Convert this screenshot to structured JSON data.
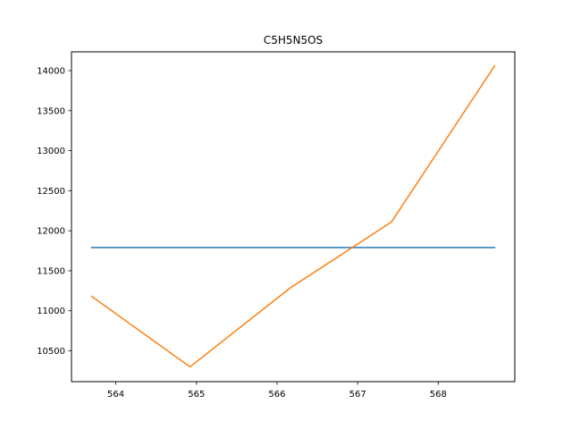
{
  "chart_data": {
    "type": "line",
    "title": "C5H5N5OS",
    "xlabel": "",
    "ylabel": "",
    "xlim": [
      563.45,
      568.95
    ],
    "ylim": [
      10115,
      14235
    ],
    "x_ticks": [
      564,
      565,
      566,
      567,
      568
    ],
    "y_ticks": [
      10500,
      11000,
      11500,
      12000,
      12500,
      13000,
      13500,
      14000
    ],
    "grid": false,
    "series": [
      {
        "color": "#1f77b4",
        "x": [
          563.7,
          568.7
        ],
        "y": [
          11790,
          11790
        ]
      },
      {
        "color": "#ff7f0e",
        "x": [
          563.7,
          564.92,
          566.17,
          567.42,
          568.7
        ],
        "y": [
          11180,
          10300,
          11290,
          12110,
          14060
        ]
      }
    ]
  }
}
